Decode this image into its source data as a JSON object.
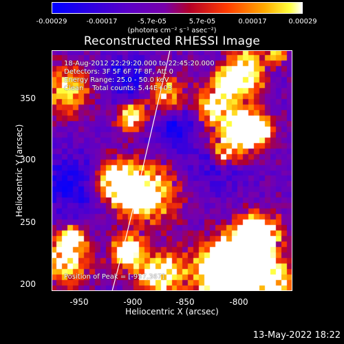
{
  "colorbar": {
    "ticks": [
      "-0.00029",
      "-0.00017",
      "-5.7e-05",
      "5.7e-05",
      "0.00017",
      "0.00029"
    ],
    "units": "(photons cm⁻² s⁻¹ asec⁻²)"
  },
  "title": "Reconstructed RHESSI Image",
  "annotations": {
    "time": "18-Aug-2012 22:29:20.000 to 22:45:20.000",
    "detectors": "Detectors: 3F 5F 6F 7F 8F, Att 0",
    "energy": "Energy Range: 25.0 - 50.0 keV",
    "clean": "Clean    Total counts: 5.44E+03",
    "peak": "Position of Peak = [-957,367]"
  },
  "axes": {
    "xlabel": "Heliocentric X (arcsec)",
    "ylabel": "Heliocentric Y (arcsec)",
    "xticks": [
      "-950",
      "-900",
      "-850",
      "-800"
    ],
    "yticks": [
      "350",
      "300",
      "250",
      "200"
    ]
  },
  "footer": "13-May-2022 18:22",
  "colors": {
    "limb": "#ffffff",
    "text": "#ffffff",
    "background": "#000000"
  }
}
